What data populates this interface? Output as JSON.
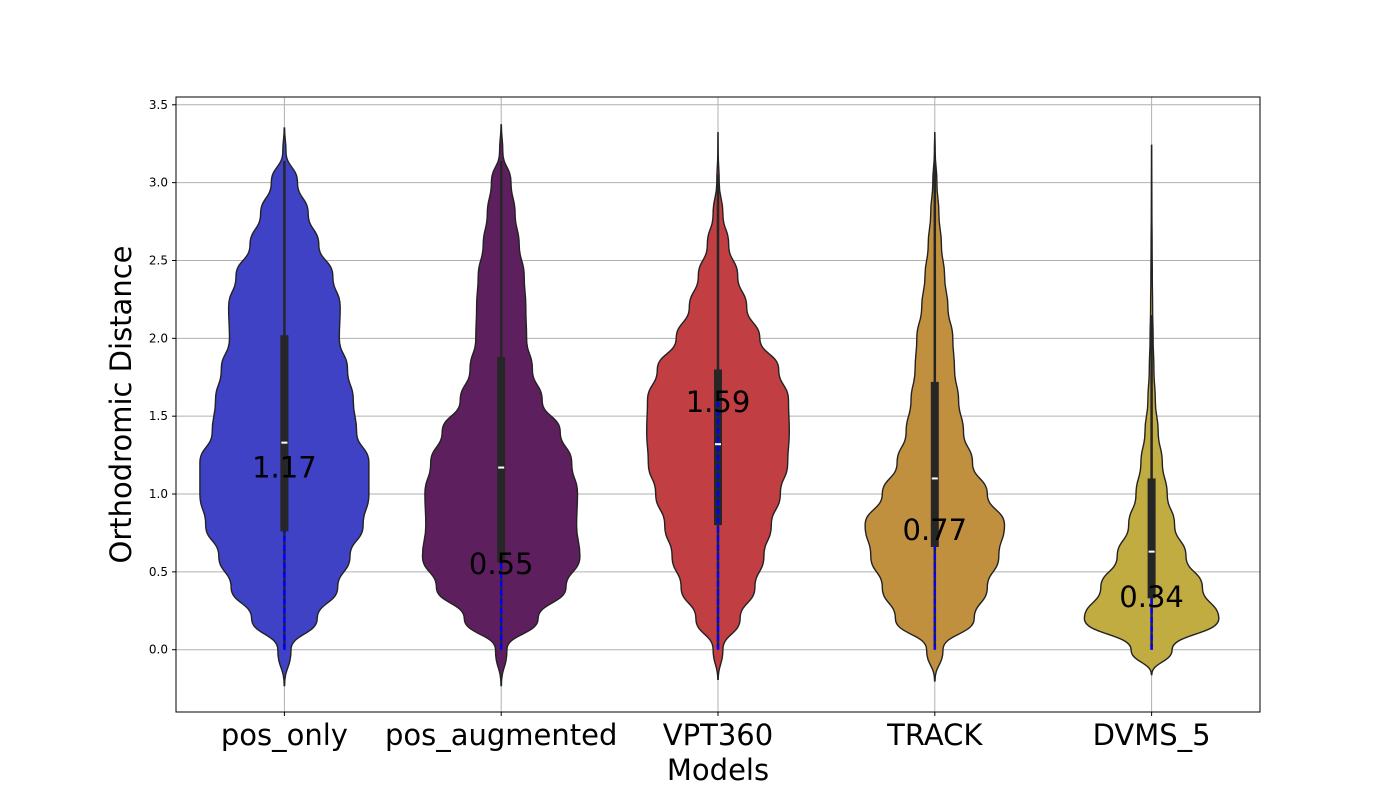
{
  "chart_data": {
    "type": "violin",
    "title": "",
    "xlabel": "Models",
    "ylabel": "Orthodromic Distance",
    "ylim": [
      -0.4,
      3.55
    ],
    "yticks": [
      0.0,
      0.5,
      1.0,
      1.5,
      2.0,
      2.5,
      3.0,
      3.5
    ],
    "ytick_labels": [
      "0.0",
      "0.5",
      "1.0",
      "1.5",
      "2.0",
      "2.5",
      "3.0",
      "3.5"
    ],
    "grid": true,
    "categories": [
      "pos_only",
      "pos_augmented",
      "VPT360",
      "TRACK",
      "DVMS_5"
    ],
    "colors": [
      "#3f42c4",
      "#5e1f5e",
      "#c13f42",
      "#c1903f",
      "#c1ac42"
    ],
    "violins": [
      {
        "name": "pos_only",
        "min": -0.23,
        "max": 3.35,
        "q1": 0.76,
        "median": 1.33,
        "q3": 2.02,
        "whisker_low": 0.0,
        "whisker_high": 3.14,
        "annotation": "1.17",
        "annotation_y": 1.17,
        "dashed_to": 0.76,
        "density": [
          [
            -0.23,
            0.002
          ],
          [
            0.0,
            0.08
          ],
          [
            0.2,
            0.4
          ],
          [
            0.4,
            0.65
          ],
          [
            0.6,
            0.8
          ],
          [
            0.8,
            0.96
          ],
          [
            1.0,
            1.03
          ],
          [
            1.2,
            1.03
          ],
          [
            1.4,
            0.88
          ],
          [
            1.6,
            0.84
          ],
          [
            1.8,
            0.77
          ],
          [
            2.0,
            0.67
          ],
          [
            2.2,
            0.68
          ],
          [
            2.4,
            0.59
          ],
          [
            2.6,
            0.42
          ],
          [
            2.8,
            0.29
          ],
          [
            3.0,
            0.16
          ],
          [
            3.2,
            0.02
          ],
          [
            3.35,
            0.002
          ]
        ]
      },
      {
        "name": "pos_augmented",
        "min": -0.23,
        "max": 3.37,
        "q1": 0.56,
        "median": 1.17,
        "q3": 1.88,
        "whisker_low": 0.0,
        "whisker_high": 3.14,
        "annotation": "0.55",
        "annotation_y": 0.55,
        "dashed_to": 0.56,
        "density": [
          [
            -0.23,
            0.002
          ],
          [
            0.0,
            0.07
          ],
          [
            0.2,
            0.45
          ],
          [
            0.4,
            0.79
          ],
          [
            0.6,
            0.96
          ],
          [
            0.8,
            0.92
          ],
          [
            1.0,
            0.93
          ],
          [
            1.2,
            0.86
          ],
          [
            1.4,
            0.72
          ],
          [
            1.6,
            0.5
          ],
          [
            1.8,
            0.38
          ],
          [
            2.0,
            0.31
          ],
          [
            2.2,
            0.3
          ],
          [
            2.4,
            0.28
          ],
          [
            2.6,
            0.22
          ],
          [
            2.8,
            0.17
          ],
          [
            3.0,
            0.12
          ],
          [
            3.2,
            0.02
          ],
          [
            3.37,
            0.002
          ]
        ]
      },
      {
        "name": "VPT360",
        "min": -0.19,
        "max": 3.32,
        "q1": 0.8,
        "median": 1.32,
        "q3": 1.8,
        "whisker_low": 0.0,
        "whisker_high": 3.05,
        "annotation": "1.59",
        "annotation_y": 1.59,
        "dashed_to": 1.59,
        "density": [
          [
            -0.19,
            0.002
          ],
          [
            0.0,
            0.06
          ],
          [
            0.2,
            0.27
          ],
          [
            0.4,
            0.45
          ],
          [
            0.6,
            0.56
          ],
          [
            0.8,
            0.65
          ],
          [
            1.0,
            0.76
          ],
          [
            1.2,
            0.85
          ],
          [
            1.4,
            0.87
          ],
          [
            1.6,
            0.86
          ],
          [
            1.8,
            0.74
          ],
          [
            2.0,
            0.51
          ],
          [
            2.2,
            0.35
          ],
          [
            2.4,
            0.24
          ],
          [
            2.6,
            0.13
          ],
          [
            2.8,
            0.06
          ],
          [
            3.0,
            0.015
          ],
          [
            3.2,
            0.003
          ],
          [
            3.32,
            0.001
          ]
        ]
      },
      {
        "name": "TRACK",
        "min": -0.2,
        "max": 3.32,
        "q1": 0.66,
        "median": 1.1,
        "q3": 1.72,
        "whisker_low": 0.0,
        "whisker_high": 3.14,
        "annotation": "0.77",
        "annotation_y": 0.77,
        "dashed_to": 0.66,
        "density": [
          [
            -0.2,
            0.002
          ],
          [
            0.0,
            0.1
          ],
          [
            0.2,
            0.48
          ],
          [
            0.4,
            0.64
          ],
          [
            0.6,
            0.78
          ],
          [
            0.8,
            0.85
          ],
          [
            1.0,
            0.64
          ],
          [
            1.2,
            0.46
          ],
          [
            1.4,
            0.35
          ],
          [
            1.6,
            0.29
          ],
          [
            1.8,
            0.24
          ],
          [
            2.0,
            0.22
          ],
          [
            2.2,
            0.16
          ],
          [
            2.4,
            0.12
          ],
          [
            2.6,
            0.08
          ],
          [
            2.8,
            0.05
          ],
          [
            3.0,
            0.025
          ],
          [
            3.2,
            0.005
          ],
          [
            3.32,
            0.001
          ]
        ]
      },
      {
        "name": "DVMS_5",
        "min": -0.16,
        "max": 3.24,
        "q1": 0.33,
        "median": 0.63,
        "q3": 1.1,
        "whisker_low": 0.0,
        "whisker_high": 2.15,
        "annotation": "0.34",
        "annotation_y": 0.34,
        "dashed_to": 0.33,
        "density": [
          [
            -0.16,
            0.002
          ],
          [
            0.0,
            0.25
          ],
          [
            0.2,
            0.82
          ],
          [
            0.4,
            0.62
          ],
          [
            0.6,
            0.42
          ],
          [
            0.8,
            0.28
          ],
          [
            1.0,
            0.19
          ],
          [
            1.2,
            0.13
          ],
          [
            1.4,
            0.08
          ],
          [
            1.6,
            0.045
          ],
          [
            1.8,
            0.028
          ],
          [
            2.0,
            0.018
          ],
          [
            2.2,
            0.012
          ],
          [
            2.4,
            0.009
          ],
          [
            2.6,
            0.006
          ],
          [
            2.8,
            0.004
          ],
          [
            3.0,
            0.002
          ],
          [
            3.24,
            0.001
          ]
        ]
      }
    ]
  }
}
